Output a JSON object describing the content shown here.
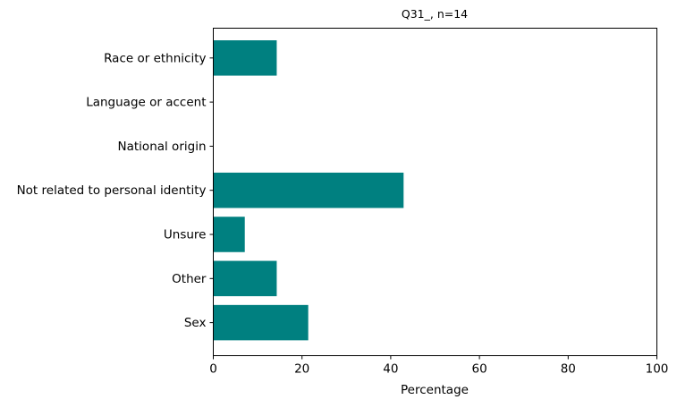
{
  "chart_data": {
    "type": "bar",
    "orientation": "horizontal",
    "title": "Q31_, n=14",
    "xlabel": "Percentage",
    "ylabel": "",
    "xlim": [
      0,
      100
    ],
    "xticks": [
      "0",
      "20",
      "40",
      "60",
      "80",
      "100"
    ],
    "grid": false,
    "legend": "none",
    "bar_color": "#008080",
    "categories": [
      "Race or ethnicity",
      "Language or accent",
      "National origin",
      "Not related to personal identity",
      "Unsure",
      "Other",
      "Sex"
    ],
    "values": [
      14.3,
      0,
      0,
      42.9,
      7.1,
      14.3,
      21.4
    ]
  }
}
